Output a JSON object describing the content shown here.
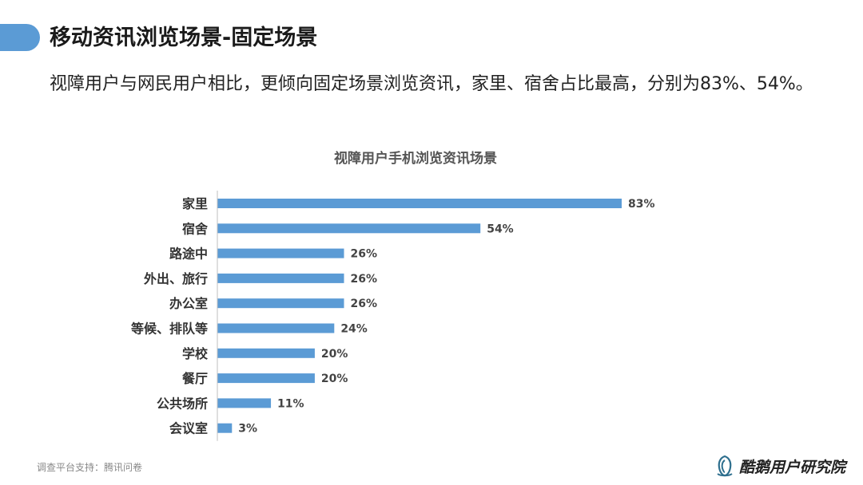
{
  "header": {
    "title": "移动资讯浏览场景-固定场景",
    "subtitle": "视障用户与网民用户相比，更倾向固定场景浏览资讯，家里、宿舍占比最高，分别为83%、54%。"
  },
  "footer": {
    "source": "调查平台支持：腾讯问卷",
    "brand": "酷鹅用户研究院"
  },
  "colors": {
    "accent": "#5b9bd5",
    "bar": "#5b9bd5"
  },
  "icons": {
    "brand_logo": "penguin-logo-icon"
  },
  "chart_data": {
    "type": "bar",
    "orientation": "horizontal",
    "title": "视障用户手机浏览资讯场景",
    "xlabel": "",
    "ylabel": "",
    "unit": "%",
    "xlim": [
      0,
      100
    ],
    "grid": false,
    "legend": "none",
    "categories": [
      "家里",
      "宿舍",
      "路途中",
      "外出、旅行",
      "办公室",
      "等候、排队等",
      "学校",
      "餐厅",
      "公共场所",
      "会议室"
    ],
    "values": [
      83,
      54,
      26,
      26,
      26,
      24,
      20,
      20,
      11,
      3
    ],
    "data_labels": [
      "83%",
      "54%",
      "26%",
      "26%",
      "26%",
      "24%",
      "20%",
      "20%",
      "11%",
      "3%"
    ]
  }
}
